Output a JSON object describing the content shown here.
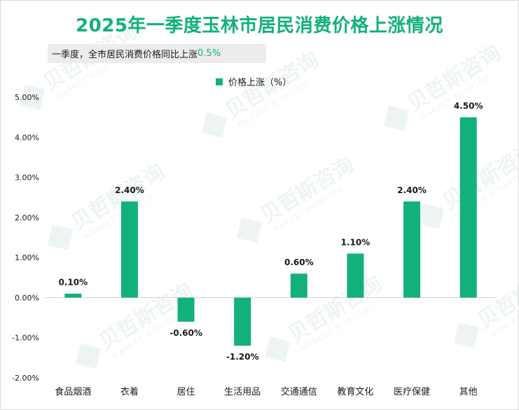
{
  "chart_data": {
    "type": "bar",
    "title": "2025年一季度玉林市居民消费价格上涨情况",
    "annotation": {
      "text": "一季度，全市居民消费价格同比上涨",
      "value": "0.5%"
    },
    "legend": [
      "价格上涨（%）"
    ],
    "legend_position": "top-center",
    "categories": [
      "食品烟酒",
      "衣着",
      "居住",
      "生活用品",
      "交通通信",
      "教育文化",
      "医疗保健",
      "其他"
    ],
    "series": [
      {
        "name": "价格上涨（%）",
        "values": [
          0.1,
          2.4,
          -0.6,
          -1.2,
          0.6,
          1.1,
          2.4,
          4.5
        ],
        "labels": [
          "0.10%",
          "2.40%",
          "-0.60%",
          "-1.20%",
          "0.60%",
          "1.10%",
          "2.40%",
          "4.50%"
        ]
      }
    ],
    "ylim": [
      -2.0,
      5.0
    ],
    "yticks": [
      -2.0,
      -1.0,
      0.0,
      1.0,
      2.0,
      3.0,
      4.0,
      5.0
    ],
    "ytick_labels": [
      "-2.00%",
      "-1.00%",
      "0.00%",
      "1.00%",
      "2.00%",
      "3.00%",
      "4.00%",
      "5.00%"
    ],
    "xlabel": "",
    "ylabel": "",
    "grid": false,
    "color": "#12b07c"
  },
  "watermark": {
    "brand": "贝哲斯咨询",
    "sub": "MARKET MONITOR"
  }
}
